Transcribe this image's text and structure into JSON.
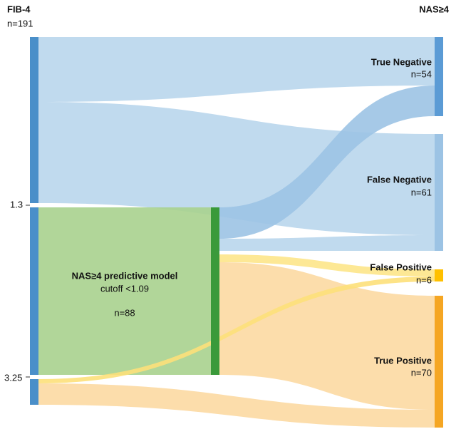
{
  "source": {
    "title": "FIB-4",
    "count": "n=191",
    "ticks": [
      "1.3",
      "3.25"
    ]
  },
  "target": {
    "title": "NAS≥4"
  },
  "model": {
    "title": "NAS≥4 predictive model",
    "cutoff": "cutoff <1.09",
    "count": "n=88"
  },
  "nodes": [
    {
      "label": "True Negative",
      "count": "n=54"
    },
    {
      "label": "False Negative",
      "count": "n=61"
    },
    {
      "label": "False Positive",
      "count": "n=6"
    },
    {
      "label": "True Positive",
      "count": "n=70"
    }
  ]
}
